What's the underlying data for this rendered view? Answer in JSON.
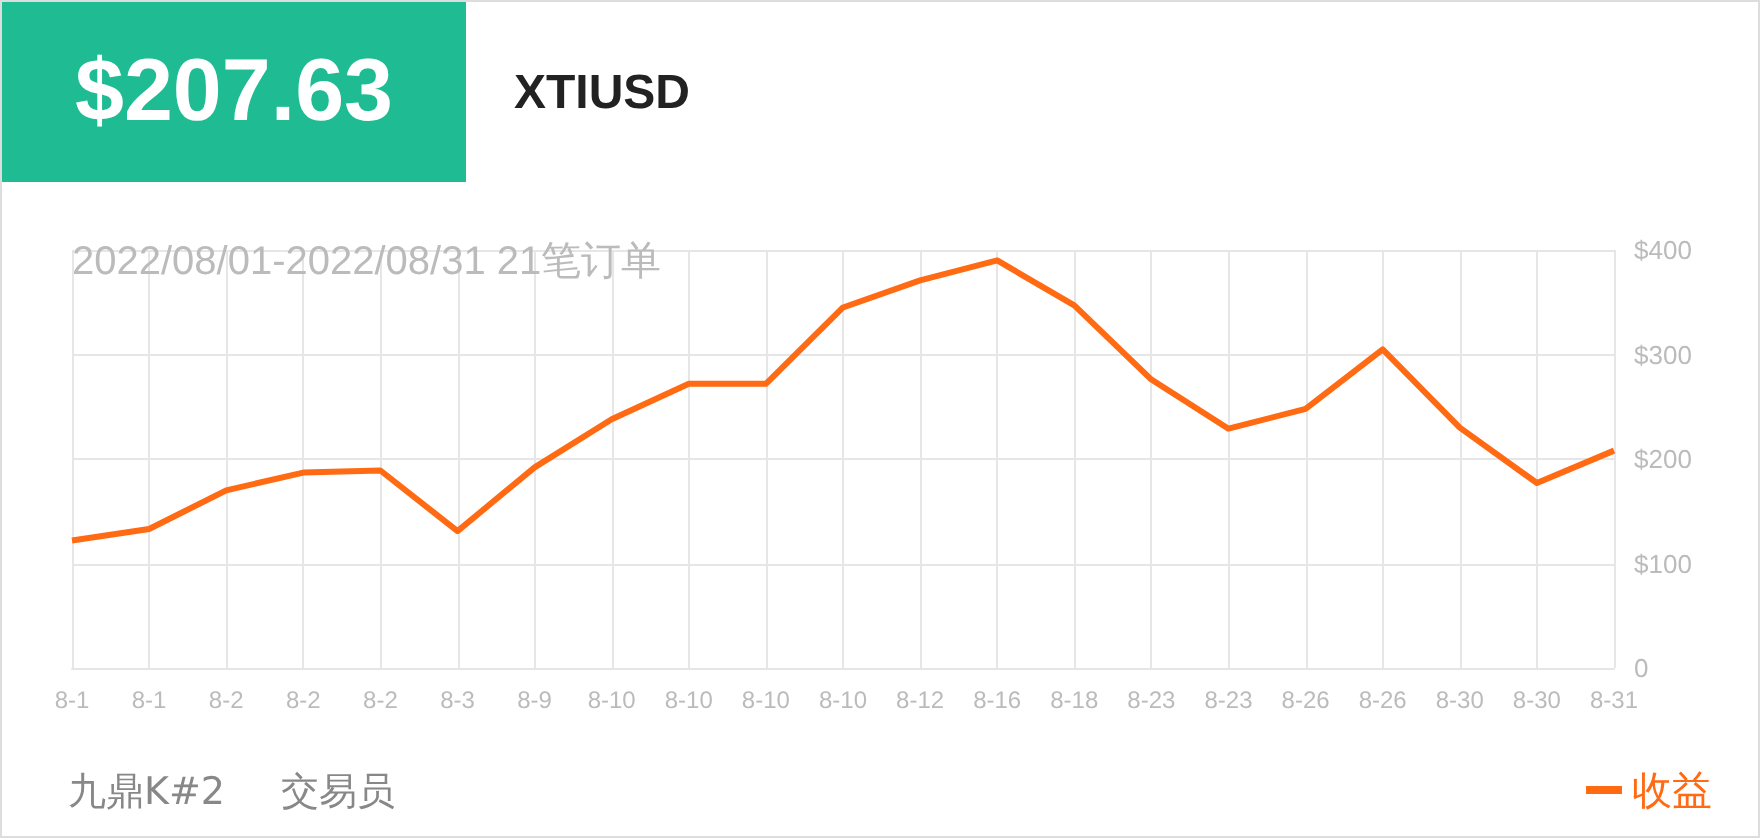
{
  "chart_data": {
    "type": "line",
    "title": "$207.63",
    "subtitle": "XTIUSD",
    "annotations": [
      "2022/08/01-2022/08/31 21笔订单",
      "九鼎K#2",
      "交易员"
    ],
    "categories": [
      "8-1",
      "8-1",
      "8-2",
      "8-2",
      "8-2",
      "8-3",
      "8-9",
      "8-10",
      "8-10",
      "8-10",
      "8-10",
      "8-12",
      "8-16",
      "8-18",
      "8-23",
      "8-23",
      "8-26",
      "8-26",
      "8-30",
      "8-30",
      "8-31"
    ],
    "series": [
      {
        "name": "收益",
        "color": "#ff6a13",
        "values": [
          122,
          133,
          170,
          187,
          189,
          131,
          192,
          238,
          272,
          272,
          345,
          371,
          390,
          347,
          276,
          229,
          248,
          305,
          230,
          177,
          208
        ]
      }
    ],
    "ylim": [
      0,
      400
    ],
    "yticks": [
      0,
      {
        "value": 100,
        "label": "$100"
      },
      {
        "value": 200,
        "label": "$200"
      },
      {
        "value": 300,
        "label": "$300"
      },
      {
        "value": 400,
        "label": "$400"
      }
    ],
    "grid": true,
    "legend": "bottom right",
    "marker": "none",
    "line_style": "solid"
  }
}
